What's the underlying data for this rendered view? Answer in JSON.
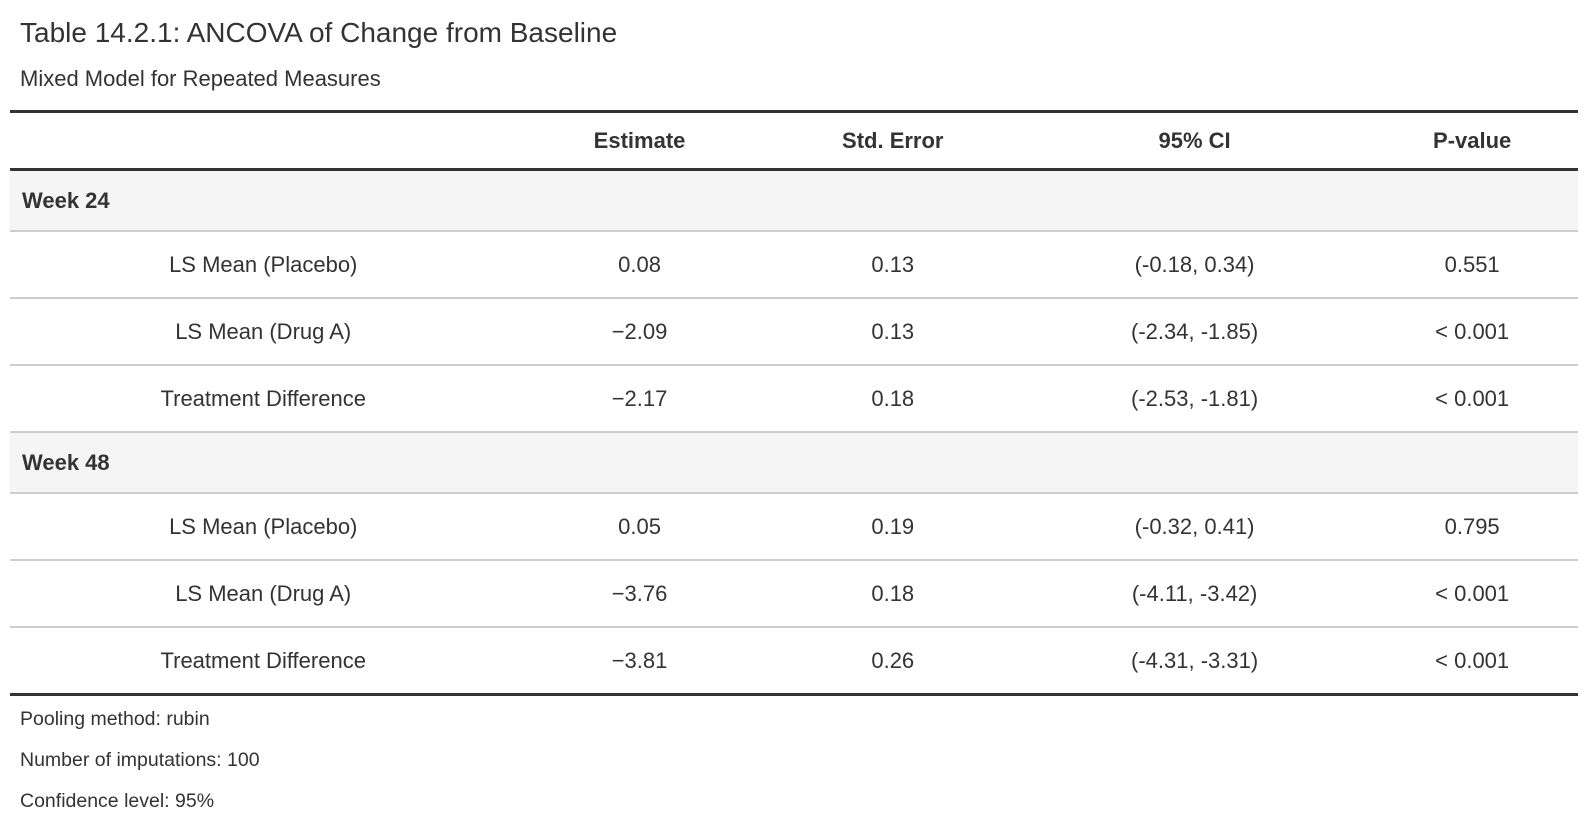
{
  "page": {
    "title": "Table 14.2.1: ANCOVA of Change from Baseline",
    "subtitle": "Mixed Model for Repeated Measures"
  },
  "table": {
    "columns": [
      "",
      "Estimate",
      "Std. Error",
      "95% CI",
      "P-value"
    ],
    "groups": [
      {
        "label": "Week 24",
        "rows": [
          {
            "label": "LS Mean (Placebo)",
            "estimate": "0.08",
            "std_error": "0.13",
            "ci": "(-0.18, 0.34)",
            "p_value": "0.551"
          },
          {
            "label": "LS Mean (Drug A)",
            "estimate": "−2.09",
            "std_error": "0.13",
            "ci": "(-2.34, -1.85)",
            "p_value": "< 0.001"
          },
          {
            "label": "Treatment Difference",
            "estimate": "−2.17",
            "std_error": "0.18",
            "ci": "(-2.53, -1.81)",
            "p_value": "< 0.001"
          }
        ]
      },
      {
        "label": "Week 48",
        "rows": [
          {
            "label": "LS Mean (Placebo)",
            "estimate": "0.05",
            "std_error": "0.19",
            "ci": "(-0.32, 0.41)",
            "p_value": "0.795"
          },
          {
            "label": "LS Mean (Drug A)",
            "estimate": "−3.76",
            "std_error": "0.18",
            "ci": "(-4.11, -3.42)",
            "p_value": "< 0.001"
          },
          {
            "label": "Treatment Difference",
            "estimate": "−3.81",
            "std_error": "0.26",
            "ci": "(-4.31, -3.31)",
            "p_value": "< 0.001"
          }
        ]
      }
    ],
    "footnotes": [
      "Pooling method: rubin",
      "Number of imputations: 100",
      "Confidence level: 95%"
    ]
  },
  "colors": {
    "text": "#333333",
    "border_dark": "#333333",
    "border_light": "#cdcdcd",
    "group_row_bg": "#f5f5f6",
    "page_bg": "#ffffff"
  }
}
